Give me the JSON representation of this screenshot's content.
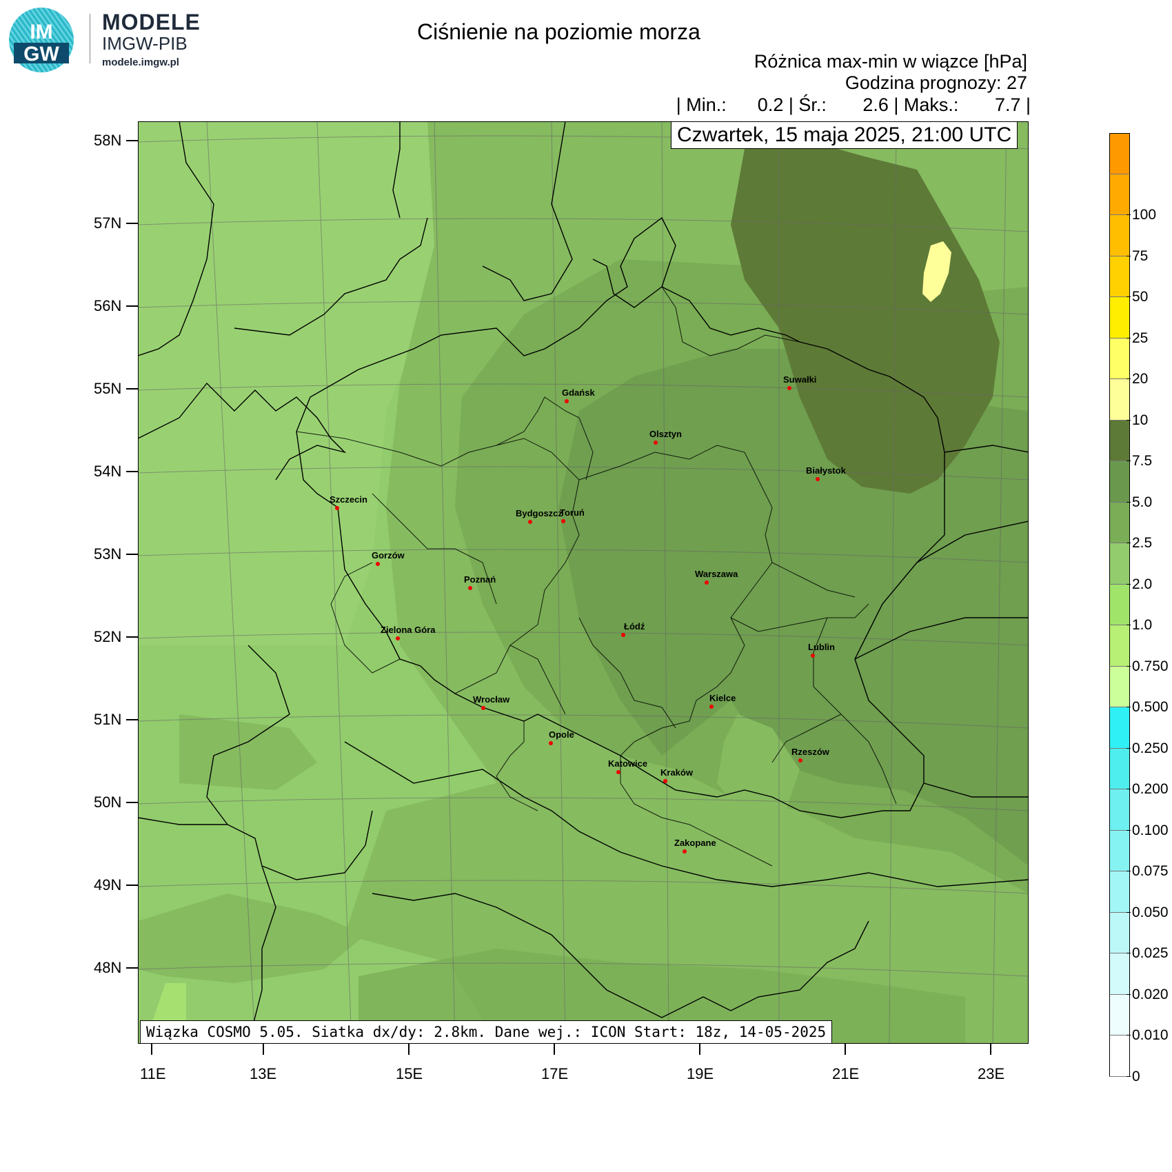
{
  "logo": {
    "badge_top": "IM",
    "badge_bottom": "GW",
    "line1": "MODELE",
    "line2": "IMGW-PIB",
    "line3": "modele.imgw.pl"
  },
  "title": "Ciśnienie na poziomie morza",
  "subtitle1": "Różnica max-min w wiązce [hPa]",
  "subtitle2": "Godzina prognozy: 27",
  "stats": {
    "text": "| Min.:      0.2 | Śr.:       2.6 | Maks.:       7.7 |",
    "min": 0.2,
    "mean": 2.6,
    "max": 7.7
  },
  "date": "Czwartek, 15 maja 2025, 21:00 UTC",
  "footer": "Wiązka COSMO 5.05. Siatka dx/dy: 2.8km. Dane wej.: ICON Start: 18z, 14-05-2025",
  "axes": {
    "lat_labels": [
      "58N",
      "57N",
      "56N",
      "55N",
      "54N",
      "53N",
      "52N",
      "51N",
      "50N",
      "49N",
      "48N"
    ],
    "lon_labels": [
      "11E",
      "13E",
      "15E",
      "17E",
      "19E",
      "21E",
      "23E"
    ]
  },
  "cities": [
    {
      "name": "Gdańsk"
    },
    {
      "name": "Olsztyn"
    },
    {
      "name": "Suwałki"
    },
    {
      "name": "Białystok"
    },
    {
      "name": "Szczecin"
    },
    {
      "name": "Bydgoszcz"
    },
    {
      "name": "Toruń"
    },
    {
      "name": "Gorzów"
    },
    {
      "name": "Poznań"
    },
    {
      "name": "Warszawa"
    },
    {
      "name": "Zielona Góra"
    },
    {
      "name": "Łódź"
    },
    {
      "name": "Lublin"
    },
    {
      "name": "Wrocław"
    },
    {
      "name": "Kielce"
    },
    {
      "name": "Opole"
    },
    {
      "name": "Rzeszów"
    },
    {
      "name": "Katowice"
    },
    {
      "name": "Kraków"
    },
    {
      "name": "Zakopane"
    }
  ],
  "legend": [
    {
      "label": "0",
      "color": "#ffffff"
    },
    {
      "label": "0.010",
      "color": "#eefdfd"
    },
    {
      "label": "0.020",
      "color": "#d4fbfb"
    },
    {
      "label": "0.025",
      "color": "#bcf8f8"
    },
    {
      "label": "0.050",
      "color": "#a2f6f6"
    },
    {
      "label": "0.075",
      "color": "#86f3f3"
    },
    {
      "label": "0.100",
      "color": "#6ef0f0"
    },
    {
      "label": "0.200",
      "color": "#4eeeee"
    },
    {
      "label": "0.250",
      "color": "#2ff0f5"
    },
    {
      "label": "0.500",
      "color": "#ccff99"
    },
    {
      "label": "0.750",
      "color": "#b7f075"
    },
    {
      "label": "1.0",
      "color": "#a0e56a"
    },
    {
      "label": "2.0",
      "color": "#92cc6c"
    },
    {
      "label": "2.5",
      "color": "#7aad55"
    },
    {
      "label": "5.0",
      "color": "#6a994e"
    },
    {
      "label": "7.5",
      "color": "#5e7a37"
    },
    {
      "label": "10",
      "color": "#ffff99"
    },
    {
      "label": "20",
      "color": "#ffff66"
    },
    {
      "label": "25",
      "color": "#ffee00"
    },
    {
      "label": "50",
      "color": "#ffd100"
    },
    {
      "label": "75",
      "color": "#ffbf00"
    },
    {
      "label": "100",
      "color": "#ffaa00"
    },
    {
      "label": "",
      "color": "#ff9900"
    }
  ]
}
